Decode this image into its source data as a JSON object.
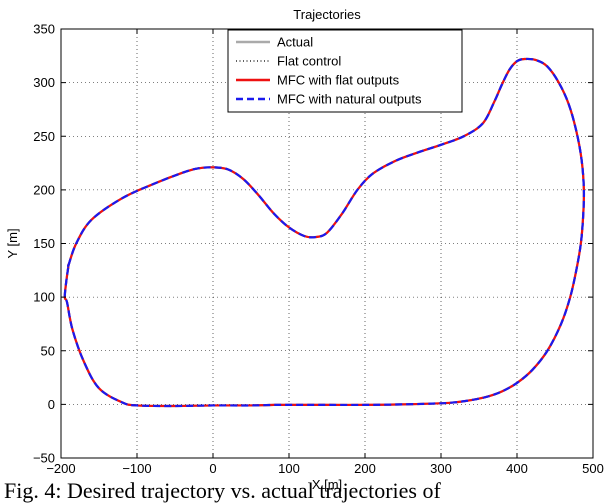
{
  "chart_data": {
    "type": "line",
    "title": "Trajectories",
    "xlabel": "X [m]",
    "ylabel": "Y [m]",
    "xlim": [
      -200,
      500
    ],
    "ylim": [
      -50,
      350
    ],
    "xticks": [
      -200,
      -100,
      0,
      100,
      200,
      300,
      400,
      500
    ],
    "yticks": [
      -50,
      0,
      50,
      100,
      150,
      200,
      250,
      300,
      350
    ],
    "grid": true,
    "legend_position": "top-center",
    "path": {
      "x": [
        -190,
        -180,
        -160,
        -120,
        -80,
        -40,
        -20,
        0,
        20,
        40,
        60,
        80,
        100,
        120,
        135,
        150,
        170,
        190,
        210,
        240,
        270,
        300,
        330,
        355,
        370,
        380,
        390,
        400,
        410,
        425,
        440,
        455,
        468,
        478,
        485,
        488,
        487,
        484,
        478,
        470,
        458,
        440,
        420,
        400,
        380,
        360,
        340,
        320,
        300,
        250,
        200,
        150,
        100,
        80,
        50,
        0,
        -50,
        -100,
        -120,
        -150,
        -170,
        -185,
        -192,
        -195,
        -193,
        -190
      ],
      "y": [
        130,
        150,
        172,
        192,
        205,
        216,
        220,
        221,
        219,
        210,
        195,
        178,
        165,
        157,
        156,
        160,
        178,
        200,
        215,
        227,
        235,
        242,
        250,
        262,
        282,
        298,
        312,
        320,
        322,
        321,
        315,
        300,
        280,
        255,
        228,
        200,
        175,
        150,
        125,
        100,
        75,
        50,
        32,
        20,
        12,
        7,
        4,
        2,
        1,
        0,
        -0.5,
        -0.5,
        -0.5,
        -0.5,
        -1,
        -1,
        -1.5,
        -1,
        2,
        15,
        40,
        70,
        95,
        100,
        115,
        130
      ]
    },
    "series": [
      {
        "name": "Actual",
        "color": "#aaaaaa",
        "style": "solid"
      },
      {
        "name": "Flat control",
        "color": "#000000",
        "style": "dotted"
      },
      {
        "name": "MFC with flat outputs",
        "color": "#ee1111",
        "style": "solid"
      },
      {
        "name": "MFC with natural outputs",
        "color": "#1a1aee",
        "style": "dashed"
      }
    ]
  },
  "caption": "Fig. 4: Desired trajectory vs. actual trajectories of"
}
